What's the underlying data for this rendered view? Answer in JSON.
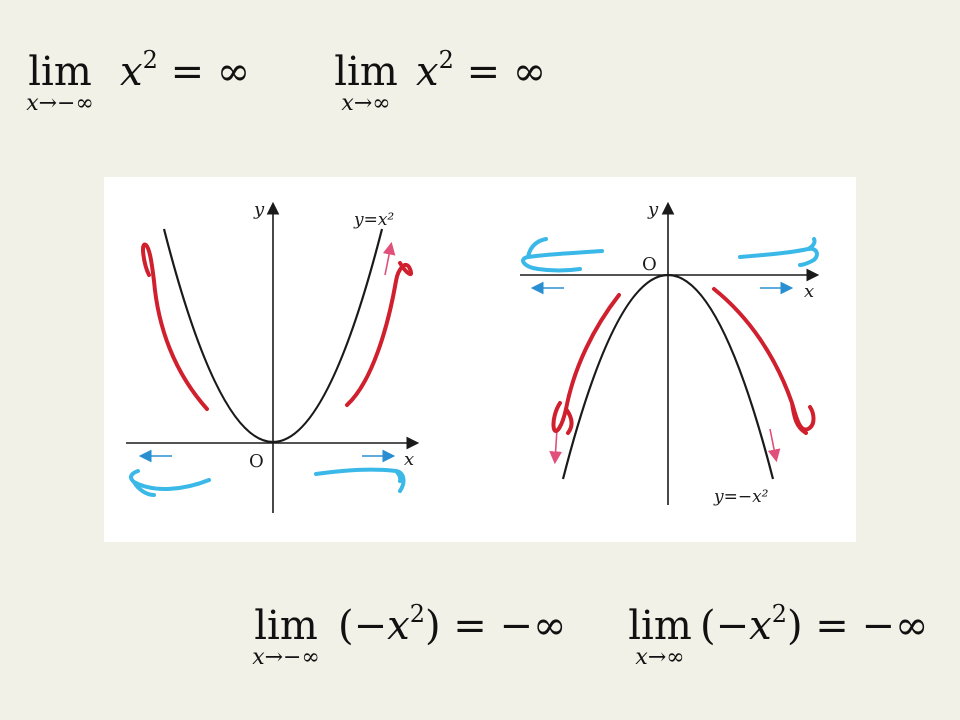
{
  "equations_top": [
    {
      "lim_word": "lim",
      "subscript": "x→−∞",
      "expression_var": "x",
      "exponent": "2",
      "rhs": "= ∞"
    },
    {
      "lim_word": "lim",
      "subscript": "x→∞",
      "expression_var": "x",
      "exponent": "2",
      "rhs": "= ∞"
    }
  ],
  "equations_bottom": [
    {
      "lim_word": "lim",
      "subscript": "x→−∞",
      "prefix": "(−",
      "expression_var": "x",
      "exponent": "2",
      "suffix": ")",
      "rhs": "= −∞"
    },
    {
      "lim_word": "lim",
      "subscript": "x→∞",
      "prefix": "(−",
      "expression_var": "x",
      "exponent": "2",
      "suffix": ")",
      "rhs": "= −∞"
    }
  ],
  "graph_left": {
    "y_axis_label": "y",
    "x_axis_label": "x",
    "origin_label": "O",
    "curve_label": "y=x²"
  },
  "graph_right": {
    "y_axis_label": "y",
    "x_axis_label": "x",
    "origin_label": "O",
    "curve_label": "y=−x²"
  },
  "colors": {
    "background": "#f2f1e7",
    "panel": "#ffffff",
    "curve": "#1a1a1a",
    "red_annotation": "#d0202e",
    "blue_annotation": "#3ab8e8",
    "small_blue_arrow": "#2a8fd0",
    "small_pink_arrow": "#e0507a"
  }
}
